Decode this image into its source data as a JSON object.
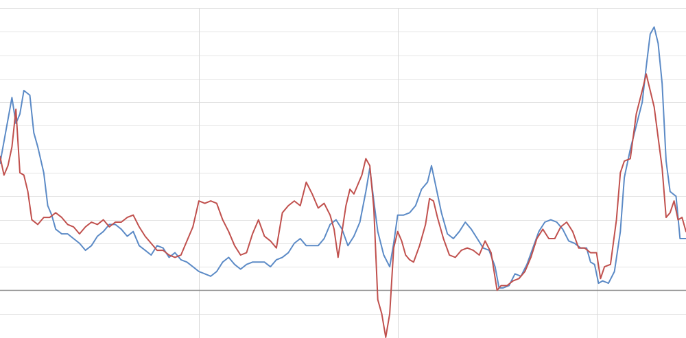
{
  "chart_data": {
    "type": "line",
    "title": "",
    "xlabel": "",
    "ylabel": "",
    "xlim": [
      0,
      345
    ],
    "ylim": [
      -2,
      12
    ],
    "y_gridlines": [
      -1,
      0,
      1,
      2,
      3,
      4,
      5,
      6,
      7,
      8,
      9,
      10,
      11,
      12
    ],
    "x_gridlines": [
      100,
      200,
      300
    ],
    "zero_line": 0,
    "grid": true,
    "legend": "none",
    "colors": {
      "blue": "#5b8ac6",
      "red": "#c0504d",
      "zero": "#8c8c8c"
    },
    "series": [
      {
        "color": "#5b8ac6",
        "points": [
          [
            0,
            5.4
          ],
          [
            3,
            6.8
          ],
          [
            6,
            8.2
          ],
          [
            8,
            7.1
          ],
          [
            10,
            7.5
          ],
          [
            12,
            8.5
          ],
          [
            15,
            8.3
          ],
          [
            17,
            6.7
          ],
          [
            19,
            6.1
          ],
          [
            22,
            5.0
          ],
          [
            24,
            3.6
          ],
          [
            26,
            3.2
          ],
          [
            28,
            2.6
          ],
          [
            31,
            2.4
          ],
          [
            34,
            2.4
          ],
          [
            37,
            2.2
          ],
          [
            40,
            2.0
          ],
          [
            43,
            1.7
          ],
          [
            46,
            1.9
          ],
          [
            49,
            2.3
          ],
          [
            52,
            2.5
          ],
          [
            55,
            2.8
          ],
          [
            58,
            2.8
          ],
          [
            61,
            2.6
          ],
          [
            64,
            2.3
          ],
          [
            67,
            2.5
          ],
          [
            70,
            1.9
          ],
          [
            73,
            1.7
          ],
          [
            76,
            1.5
          ],
          [
            79,
            1.9
          ],
          [
            82,
            1.8
          ],
          [
            85,
            1.4
          ],
          [
            88,
            1.6
          ],
          [
            91,
            1.3
          ],
          [
            94,
            1.2
          ],
          [
            97,
            1.0
          ],
          [
            100,
            0.8
          ],
          [
            103,
            0.7
          ],
          [
            106,
            0.6
          ],
          [
            109,
            0.8
          ],
          [
            112,
            1.2
          ],
          [
            115,
            1.4
          ],
          [
            118,
            1.1
          ],
          [
            121,
            0.9
          ],
          [
            124,
            1.1
          ],
          [
            127,
            1.2
          ],
          [
            130,
            1.2
          ],
          [
            133,
            1.2
          ],
          [
            136,
            1.0
          ],
          [
            139,
            1.3
          ],
          [
            142,
            1.4
          ],
          [
            145,
            1.6
          ],
          [
            148,
            2.0
          ],
          [
            151,
            2.2
          ],
          [
            154,
            1.9
          ],
          [
            157,
            1.9
          ],
          [
            160,
            1.9
          ],
          [
            163,
            2.2
          ],
          [
            166,
            2.8
          ],
          [
            169,
            3.0
          ],
          [
            172,
            2.6
          ],
          [
            175,
            1.9
          ],
          [
            178,
            2.3
          ],
          [
            181,
            2.9
          ],
          [
            184,
            4.2
          ],
          [
            186,
            5.2
          ],
          [
            188,
            3.8
          ],
          [
            190,
            2.5
          ],
          [
            193,
            1.5
          ],
          [
            196,
            1.0
          ],
          [
            198,
            2.0
          ],
          [
            200,
            3.2
          ],
          [
            203,
            3.2
          ],
          [
            206,
            3.3
          ],
          [
            209,
            3.6
          ],
          [
            212,
            4.3
          ],
          [
            215,
            4.6
          ],
          [
            217,
            5.3
          ],
          [
            219,
            4.5
          ],
          [
            222,
            3.3
          ],
          [
            225,
            2.4
          ],
          [
            228,
            2.2
          ],
          [
            231,
            2.5
          ],
          [
            234,
            2.9
          ],
          [
            237,
            2.6
          ],
          [
            240,
            2.2
          ],
          [
            243,
            1.8
          ],
          [
            246,
            1.7
          ],
          [
            249,
            1.0
          ],
          [
            251,
            0.1
          ],
          [
            253,
            0.1
          ],
          [
            256,
            0.2
          ],
          [
            259,
            0.7
          ],
          [
            262,
            0.6
          ],
          [
            265,
            1.1
          ],
          [
            268,
            1.8
          ],
          [
            271,
            2.5
          ],
          [
            274,
            2.9
          ],
          [
            277,
            3.0
          ],
          [
            280,
            2.9
          ],
          [
            283,
            2.6
          ],
          [
            286,
            2.1
          ],
          [
            289,
            2.0
          ],
          [
            292,
            1.8
          ],
          [
            295,
            1.8
          ],
          [
            297,
            1.2
          ],
          [
            299,
            1.1
          ],
          [
            301,
            0.3
          ],
          [
            303,
            0.4
          ],
          [
            306,
            0.3
          ],
          [
            309,
            0.8
          ],
          [
            312,
            2.5
          ],
          [
            314,
            4.8
          ],
          [
            317,
            6.0
          ],
          [
            320,
            7.0
          ],
          [
            323,
            8.0
          ],
          [
            325,
            9.5
          ],
          [
            327,
            10.9
          ],
          [
            329,
            11.2
          ],
          [
            331,
            10.5
          ],
          [
            333,
            8.8
          ],
          [
            335,
            5.5
          ],
          [
            337,
            4.2
          ],
          [
            340,
            4.0
          ],
          [
            342,
            2.2
          ],
          [
            345,
            2.2
          ]
        ]
      },
      {
        "color": "#c0504d",
        "points": [
          [
            0,
            5.7
          ],
          [
            2,
            4.9
          ],
          [
            4,
            5.3
          ],
          [
            6,
            6.1
          ],
          [
            8,
            7.7
          ],
          [
            10,
            5.0
          ],
          [
            12,
            4.9
          ],
          [
            14,
            4.2
          ],
          [
            16,
            3.0
          ],
          [
            19,
            2.8
          ],
          [
            22,
            3.1
          ],
          [
            25,
            3.1
          ],
          [
            28,
            3.3
          ],
          [
            31,
            3.1
          ],
          [
            34,
            2.8
          ],
          [
            37,
            2.7
          ],
          [
            40,
            2.4
          ],
          [
            43,
            2.7
          ],
          [
            46,
            2.9
          ],
          [
            49,
            2.8
          ],
          [
            52,
            3.0
          ],
          [
            55,
            2.7
          ],
          [
            58,
            2.9
          ],
          [
            61,
            2.9
          ],
          [
            64,
            3.1
          ],
          [
            67,
            3.2
          ],
          [
            70,
            2.7
          ],
          [
            73,
            2.3
          ],
          [
            76,
            2.0
          ],
          [
            79,
            1.7
          ],
          [
            82,
            1.7
          ],
          [
            85,
            1.5
          ],
          [
            88,
            1.4
          ],
          [
            91,
            1.5
          ],
          [
            94,
            2.1
          ],
          [
            97,
            2.7
          ],
          [
            100,
            3.8
          ],
          [
            103,
            3.7
          ],
          [
            106,
            3.8
          ],
          [
            109,
            3.7
          ],
          [
            112,
            3.0
          ],
          [
            115,
            2.5
          ],
          [
            118,
            1.9
          ],
          [
            121,
            1.5
          ],
          [
            124,
            1.6
          ],
          [
            127,
            2.4
          ],
          [
            130,
            3.0
          ],
          [
            133,
            2.3
          ],
          [
            136,
            2.1
          ],
          [
            139,
            1.8
          ],
          [
            142,
            3.3
          ],
          [
            145,
            3.6
          ],
          [
            148,
            3.8
          ],
          [
            151,
            3.6
          ],
          [
            154,
            4.6
          ],
          [
            157,
            4.1
          ],
          [
            160,
            3.5
          ],
          [
            163,
            3.7
          ],
          [
            166,
            3.2
          ],
          [
            168,
            2.6
          ],
          [
            170,
            1.4
          ],
          [
            172,
            2.5
          ],
          [
            174,
            3.6
          ],
          [
            176,
            4.3
          ],
          [
            178,
            4.1
          ],
          [
            180,
            4.5
          ],
          [
            182,
            4.9
          ],
          [
            184,
            5.6
          ],
          [
            186,
            5.3
          ],
          [
            188,
            3.5
          ],
          [
            190,
            -0.4
          ],
          [
            192,
            -1.0
          ],
          [
            194,
            -2.0
          ],
          [
            196,
            -1.0
          ],
          [
            198,
            1.8
          ],
          [
            200,
            2.5
          ],
          [
            202,
            2.1
          ],
          [
            204,
            1.5
          ],
          [
            206,
            1.3
          ],
          [
            208,
            1.2
          ],
          [
            211,
            1.9
          ],
          [
            214,
            2.8
          ],
          [
            216,
            3.9
          ],
          [
            218,
            3.8
          ],
          [
            220,
            3.1
          ],
          [
            223,
            2.2
          ],
          [
            226,
            1.5
          ],
          [
            229,
            1.4
          ],
          [
            232,
            1.7
          ],
          [
            235,
            1.8
          ],
          [
            238,
            1.7
          ],
          [
            241,
            1.5
          ],
          [
            244,
            2.1
          ],
          [
            247,
            1.6
          ],
          [
            250,
            0.0
          ],
          [
            252,
            0.2
          ],
          [
            255,
            0.2
          ],
          [
            258,
            0.4
          ],
          [
            261,
            0.5
          ],
          [
            264,
            0.8
          ],
          [
            267,
            1.4
          ],
          [
            270,
            2.2
          ],
          [
            273,
            2.6
          ],
          [
            276,
            2.2
          ],
          [
            279,
            2.2
          ],
          [
            282,
            2.7
          ],
          [
            285,
            2.9
          ],
          [
            288,
            2.5
          ],
          [
            291,
            1.8
          ],
          [
            294,
            1.8
          ],
          [
            297,
            1.6
          ],
          [
            300,
            1.6
          ],
          [
            302,
            0.5
          ],
          [
            304,
            1.0
          ],
          [
            307,
            1.1
          ],
          [
            310,
            3.0
          ],
          [
            312,
            5.0
          ],
          [
            314,
            5.5
          ],
          [
            317,
            5.6
          ],
          [
            320,
            7.5
          ],
          [
            323,
            8.5
          ],
          [
            325,
            9.2
          ],
          [
            327,
            8.5
          ],
          [
            329,
            7.8
          ],
          [
            331,
            6.5
          ],
          [
            333,
            5.2
          ],
          [
            335,
            3.1
          ],
          [
            337,
            3.3
          ],
          [
            339,
            3.8
          ],
          [
            341,
            3.0
          ],
          [
            343,
            3.1
          ],
          [
            345,
            2.5
          ]
        ]
      }
    ]
  }
}
